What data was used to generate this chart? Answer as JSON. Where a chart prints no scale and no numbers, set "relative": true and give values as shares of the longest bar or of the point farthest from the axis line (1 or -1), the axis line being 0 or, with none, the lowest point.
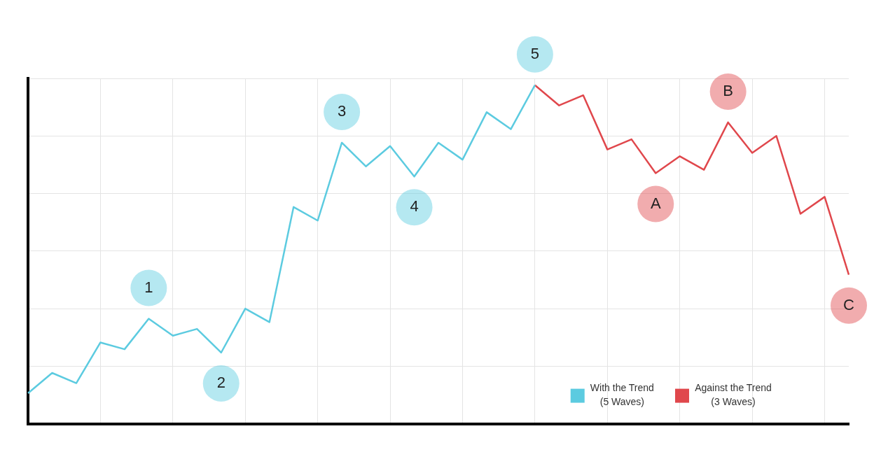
{
  "chart_data": {
    "type": "line",
    "relative": true,
    "grid": true,
    "legend": "bottom right",
    "marker": "none",
    "line_style": "solid",
    "categories": [
      null,
      null,
      null,
      null,
      null,
      null,
      null,
      null,
      null,
      null,
      null,
      null,
      null,
      null,
      null,
      null,
      null,
      null,
      null,
      null,
      null,
      null,
      null,
      null,
      null,
      null,
      null,
      null,
      null,
      null,
      null,
      null,
      null,
      null,
      null
    ],
    "series": [
      {
        "name": "With the Trend\n(5 Waves)",
        "color": "#5ccbe0",
        "values": [
          0.09,
          0.15,
          0.12,
          0.24,
          0.22,
          0.31,
          0.26,
          0.28,
          0.21,
          0.34,
          0.3,
          0.64,
          0.6,
          0.83,
          0.76,
          0.82,
          0.73,
          0.83,
          0.78,
          0.92,
          0.87,
          1,
          null,
          null,
          null,
          null,
          null,
          null,
          null,
          null,
          null,
          null,
          null,
          null,
          null
        ]
      },
      {
        "name": "Against the Trend\n(3 Waves)",
        "color": "#e0474c",
        "values": [
          null,
          null,
          null,
          null,
          null,
          null,
          null,
          null,
          null,
          null,
          null,
          null,
          null,
          null,
          null,
          null,
          null,
          null,
          null,
          null,
          null,
          1,
          0.94,
          0.97,
          0.81,
          0.84,
          0.74,
          0.79,
          0.75,
          0.89,
          0.8,
          0.85,
          0.62,
          0.67,
          0.44
        ]
      }
    ],
    "annotations": [
      {
        "text": "1",
        "y": 0.31
      },
      {
        "text": "2",
        "y": 0.21
      },
      {
        "text": "3",
        "y": 0.83
      },
      {
        "text": "4",
        "y": 0.73
      },
      {
        "text": "5",
        "y": 1
      },
      {
        "text": "A",
        "y": 0.74
      },
      {
        "text": "B",
        "y": 0.89
      },
      {
        "text": "C",
        "y": 0.44
      }
    ]
  }
}
